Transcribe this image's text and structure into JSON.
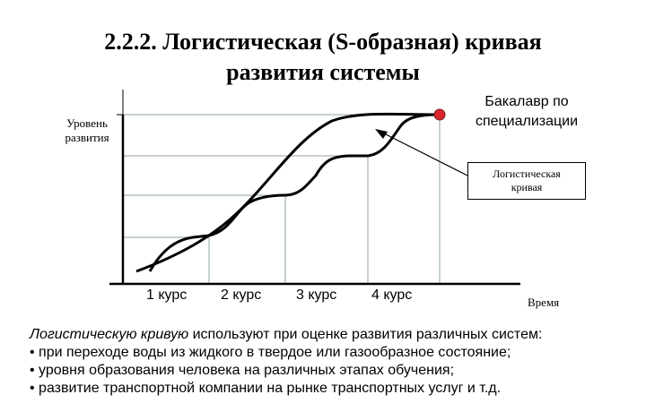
{
  "title": {
    "line1": "2.2.2. Логистическая (S-образная) кривая",
    "line2": "развития системы"
  },
  "chart_data": {
    "type": "line",
    "ylabel_line1": "Уровень",
    "ylabel_line2": "развития",
    "xlabel": "Время",
    "courses": [
      "1 курс",
      "2 курс",
      "3 курс",
      "4 курс"
    ],
    "callout_top_line1": "Бакалавр по",
    "callout_top_line2": "специализации",
    "callout_box_line1": "Логистическая",
    "callout_box_line2": "кривая",
    "curves": [
      "smooth-logistic",
      "stepped-course-curve"
    ],
    "endpoint_color": "#d9262e"
  },
  "text": {
    "intro_em": "Логистическую кривую",
    "intro_rest": " используют при оценке развития различных систем:",
    "bullets": [
      "• при переходе воды из жидкого в твердое или газообразное состояние;",
      "• уровня образования человека на различных этапах обучения;",
      "• развитие транспортной компании на рынке транспортных услуг и т.д."
    ]
  }
}
